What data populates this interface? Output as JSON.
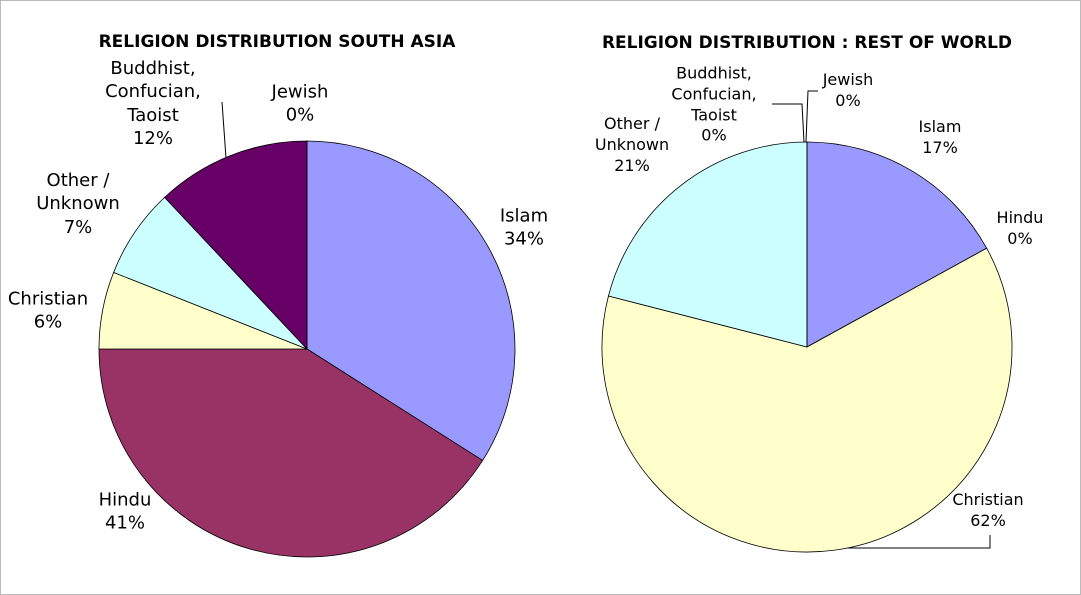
{
  "chart_data": [
    {
      "type": "pie",
      "title": "RELIGION DISTRIBUTION SOUTH ASIA",
      "categories": [
        "Islam",
        "Hindu",
        "Christian",
        "Other / Unknown",
        "Buddhist, Confucian, Taoist",
        "Jewish"
      ],
      "values": [
        34,
        41,
        6,
        7,
        12,
        0
      ],
      "value_labels": [
        "34%",
        "41%",
        "6%",
        "7%",
        "12%",
        "0%"
      ],
      "colors": [
        "#9999ff",
        "#993366",
        "#ffffcc",
        "#ccffff",
        "#660066",
        "#ff8080"
      ]
    },
    {
      "type": "pie",
      "title": "RELIGION DISTRIBUTION : REST OF WORLD",
      "categories": [
        "Islam",
        "Hindu",
        "Christian",
        "Other / Unknown",
        "Buddhist, Confucian, Taoist",
        "Jewish"
      ],
      "values": [
        17,
        0,
        62,
        21,
        0,
        0
      ],
      "value_labels": [
        "17%",
        "0%",
        "62%",
        "21%",
        "0%",
        "0%"
      ],
      "colors": [
        "#9999ff",
        "#993366",
        "#ffffcc",
        "#ccffff",
        "#660066",
        "#ff8080"
      ]
    }
  ]
}
